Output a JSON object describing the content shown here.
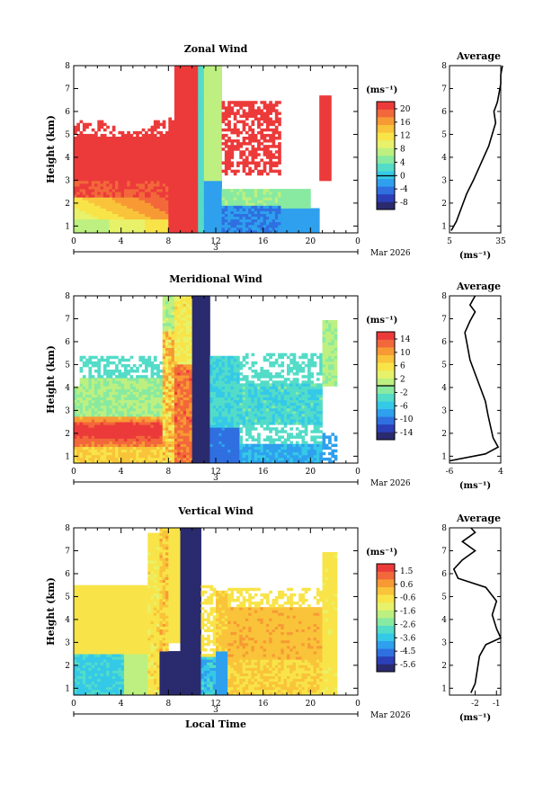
{
  "figure": {
    "bottom_xlabel": "Local Time",
    "date_label": "Mar 2026",
    "day_label": "3",
    "ylabel": "Height (km)",
    "x_ticks": [
      "0",
      "4",
      "8",
      "12",
      "16",
      "20",
      "0"
    ],
    "y_ticks": [
      "1",
      "2",
      "3",
      "4",
      "5",
      "6",
      "7",
      "8"
    ],
    "colors": {
      "scale": [
        "#2a2a6e",
        "#2b3fb8",
        "#2f6fe0",
        "#2fa0ee",
        "#35c9e8",
        "#53dcc8",
        "#88eaa0",
        "#bdf080",
        "#e7f26a",
        "#f8e448",
        "#f9c33a",
        "#f79a34",
        "#f2683a",
        "#ec3a3a"
      ]
    }
  },
  "chart_data": [
    {
      "type": "heatmap",
      "title": "Zonal Wind",
      "ylabel": "Height (km)",
      "xlabel": "Local Time",
      "xlim": [
        0,
        24
      ],
      "ylim": [
        0.7,
        8
      ],
      "colorbar": {
        "unit": "(ms⁻¹)",
        "ticks": [
          "20",
          "16",
          "12",
          "8",
          "4",
          "0",
          "-4",
          "-8"
        ],
        "range": [
          -10,
          22
        ]
      },
      "average": {
        "title": "Average",
        "xlabel": "(ms⁻¹)",
        "x_ticks": [
          "5",
          "35"
        ],
        "xlim": [
          5,
          35
        ],
        "profile": [
          [
            6,
            0.8
          ],
          [
            9,
            1.2
          ],
          [
            12,
            1.8
          ],
          [
            15,
            2.4
          ],
          [
            19,
            3.0
          ],
          [
            22,
            3.5
          ],
          [
            25,
            4.0
          ],
          [
            28,
            4.5
          ],
          [
            30,
            5.0
          ],
          [
            32,
            5.5
          ],
          [
            31,
            6.0
          ],
          [
            33,
            6.4
          ],
          [
            34,
            6.8
          ],
          [
            35,
            7.2
          ],
          [
            35,
            7.6
          ],
          [
            36,
            8.0
          ]
        ]
      }
    },
    {
      "type": "heatmap",
      "title": "Meridional Wind",
      "ylabel": "Height (km)",
      "xlabel": "Local Time",
      "xlim": [
        0,
        24
      ],
      "ylim": [
        0.7,
        8
      ],
      "colorbar": {
        "unit": "(ms⁻¹)",
        "ticks": [
          "14",
          "10",
          "6",
          "2",
          "-2",
          "-6",
          "-10",
          "-14"
        ],
        "range": [
          -16,
          16
        ]
      },
      "average": {
        "title": "Average",
        "xlabel": "(ms⁻¹)",
        "x_ticks": [
          "-6",
          "4"
        ],
        "xlim": [
          -6,
          4
        ],
        "profile": [
          [
            -6,
            0.8
          ],
          [
            1,
            1.1
          ],
          [
            3.5,
            1.4
          ],
          [
            2.5,
            1.8
          ],
          [
            2,
            2.3
          ],
          [
            1.5,
            2.8
          ],
          [
            1,
            3.4
          ],
          [
            0,
            4.0
          ],
          [
            -1,
            4.6
          ],
          [
            -2,
            5.2
          ],
          [
            -2.5,
            5.8
          ],
          [
            -3,
            6.4
          ],
          [
            -2,
            6.9
          ],
          [
            -1,
            7.3
          ],
          [
            -2,
            7.6
          ],
          [
            -1,
            8.0
          ]
        ]
      }
    },
    {
      "type": "heatmap",
      "title": "Vertical Wind",
      "ylabel": "Height (km)",
      "xlabel": "Local Time",
      "xlim": [
        0,
        24
      ],
      "ylim": [
        0.7,
        8
      ],
      "colorbar": {
        "unit": "(ms⁻¹)",
        "ticks": [
          "1.5",
          "0.6",
          "-0.6",
          "-1.6",
          "-2.6",
          "-3.6",
          "-4.5",
          "-5.6"
        ],
        "range": [
          -6,
          2
        ]
      },
      "average": {
        "title": "Average",
        "xlabel": "(ms⁻¹)",
        "x_ticks": [
          "-2",
          "-1"
        ],
        "xlim": [
          -3.2,
          -0.8
        ],
        "profile": [
          [
            -2.2,
            0.8
          ],
          [
            -2.0,
            1.2
          ],
          [
            -1.9,
            1.8
          ],
          [
            -1.8,
            2.4
          ],
          [
            -1.5,
            2.9
          ],
          [
            -0.8,
            3.2
          ],
          [
            -1.0,
            3.6
          ],
          [
            -1.2,
            4.2
          ],
          [
            -1.0,
            4.8
          ],
          [
            -1.5,
            5.4
          ],
          [
            -2.8,
            5.8
          ],
          [
            -3.0,
            6.2
          ],
          [
            -2.6,
            6.6
          ],
          [
            -2.0,
            7.0
          ],
          [
            -2.6,
            7.4
          ],
          [
            -2.0,
            7.8
          ],
          [
            -2.2,
            8.0
          ]
        ]
      }
    }
  ]
}
